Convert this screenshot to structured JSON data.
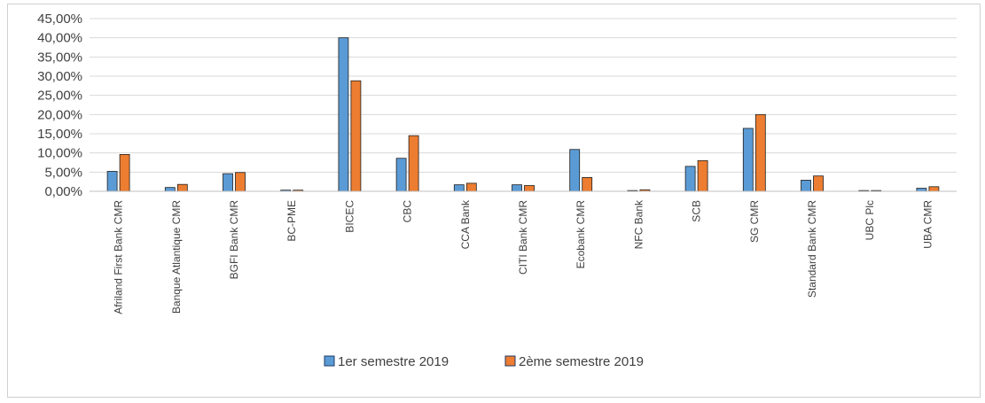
{
  "chart_data": {
    "type": "bar",
    "title": "",
    "xlabel": "",
    "ylabel": "",
    "ylim": [
      0,
      45
    ],
    "yticks": [
      "0,00%",
      "5,00%",
      "10,00%",
      "15,00%",
      "20,00%",
      "25,00%",
      "30,00%",
      "35,00%",
      "40,00%",
      "45,00%"
    ],
    "grid": true,
    "legend_position": "bottom",
    "categories": [
      "Afriland First Bank CMR",
      "Banque Atlantique CMR",
      "BGFI Bank CMR",
      "BC-PME",
      "BICEC",
      "CBC",
      "CCA Bank",
      "CITI Bank CMR",
      "Ecobank CMR",
      "NFC Bank",
      "SCB",
      "SG CMR",
      "Standard Bank CMR",
      "UBC Plc",
      "UBA CMR"
    ],
    "series": [
      {
        "name": "1er semestre 2019",
        "color": "#5b9bd5",
        "values": [
          5.2,
          1.0,
          4.6,
          0.3,
          40.0,
          8.6,
          1.7,
          1.7,
          10.9,
          0.2,
          6.5,
          16.4,
          2.9,
          0.2,
          0.8
        ]
      },
      {
        "name": "2ème semestre 2019",
        "color": "#ed7d31",
        "values": [
          9.6,
          1.8,
          4.9,
          0.3,
          28.8,
          14.5,
          2.1,
          1.5,
          3.6,
          0.4,
          8.0,
          20.0,
          4.0,
          0.2,
          1.2
        ]
      }
    ]
  }
}
